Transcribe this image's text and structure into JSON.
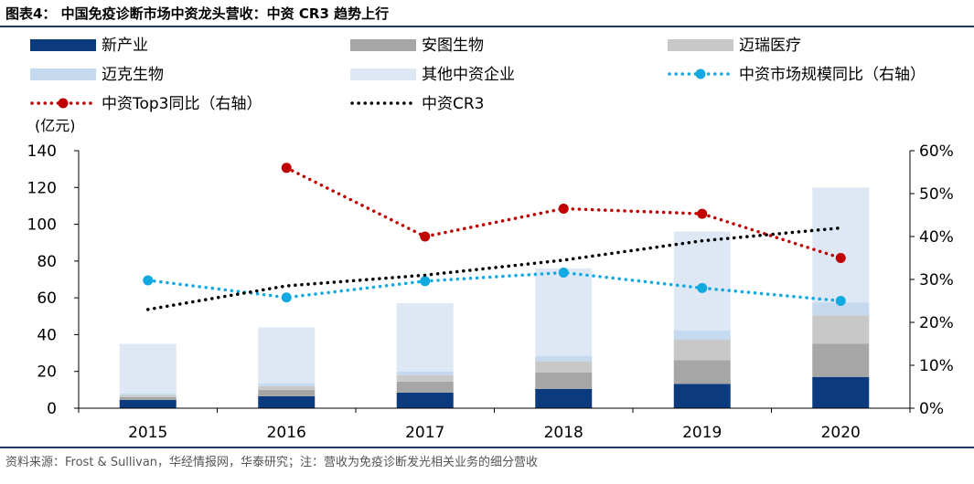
{
  "title": "图表4：  中国免疫诊断市场中资龙头营收：中资 CR3 趋势上行",
  "source": "资料来源：Frost & Sullivan，华经情报网，华泰研究；注：营收为免疫诊断发光相关业务的细分营收",
  "colors": {
    "rule": "#1f3864",
    "axis": "#000000"
  },
  "chart_data": {
    "type": "bar",
    "stacked": true,
    "categories": [
      "2015",
      "2016",
      "2017",
      "2018",
      "2019",
      "2020"
    ],
    "y_left": {
      "unit_label": "(亿元)",
      "lim": [
        0,
        140
      ],
      "ticks": [
        "0",
        "20",
        "40",
        "60",
        "80",
        "100",
        "120",
        "140"
      ]
    },
    "y_right": {
      "lim": [
        0,
        0.6
      ],
      "ticks": [
        "0%",
        "10%",
        "20%",
        "30%",
        "40%",
        "50%",
        "60%"
      ]
    },
    "grid": false,
    "legend_position": "top",
    "bar_series": [
      {
        "name": "新产业",
        "color": "#0b3a7e",
        "values": [
          4.5,
          6.5,
          8.5,
          10.5,
          13.2,
          17.0
        ]
      },
      {
        "name": "安图生物",
        "color": "#a6a6a6",
        "values": [
          1.5,
          3.5,
          6.0,
          9.0,
          13.0,
          18.0
        ]
      },
      {
        "name": "迈瑞医疗",
        "color": "#c8c8c8",
        "values": [
          1.0,
          2.0,
          3.5,
          6.0,
          11.0,
          15.5
        ]
      },
      {
        "name": "迈克生物",
        "color": "#c5d9ef",
        "values": [
          1.0,
          1.5,
          2.0,
          3.0,
          5.0,
          7.0
        ]
      },
      {
        "name": "其他中资企业",
        "color": "#dde8f4",
        "values": [
          27.0,
          30.5,
          37.0,
          47.5,
          53.8,
          62.5
        ]
      }
    ],
    "line_series": [
      {
        "name": "中资市场规模同比（右轴）",
        "color": "#12a8e0",
        "style": "dotted-marker",
        "axis": "right",
        "x": [
          "2015",
          "2016",
          "2017",
          "2018",
          "2019",
          "2020"
        ],
        "values": [
          0.298,
          0.258,
          0.296,
          0.316,
          0.28,
          0.25
        ]
      },
      {
        "name": "中资Top3同比（右轴）",
        "color": "#c00000",
        "style": "dotted-marker",
        "axis": "right",
        "x": [
          "2016",
          "2017",
          "2018",
          "2019",
          "2020"
        ],
        "values": [
          0.56,
          0.4,
          0.465,
          0.453,
          0.35
        ]
      },
      {
        "name": "中资CR3",
        "color": "#000000",
        "style": "dotted",
        "axis": "right",
        "x": [
          "2015",
          "2016",
          "2017",
          "2018",
          "2019",
          "2020"
        ],
        "values": [
          0.23,
          0.285,
          0.31,
          0.345,
          0.39,
          0.42
        ]
      }
    ]
  }
}
